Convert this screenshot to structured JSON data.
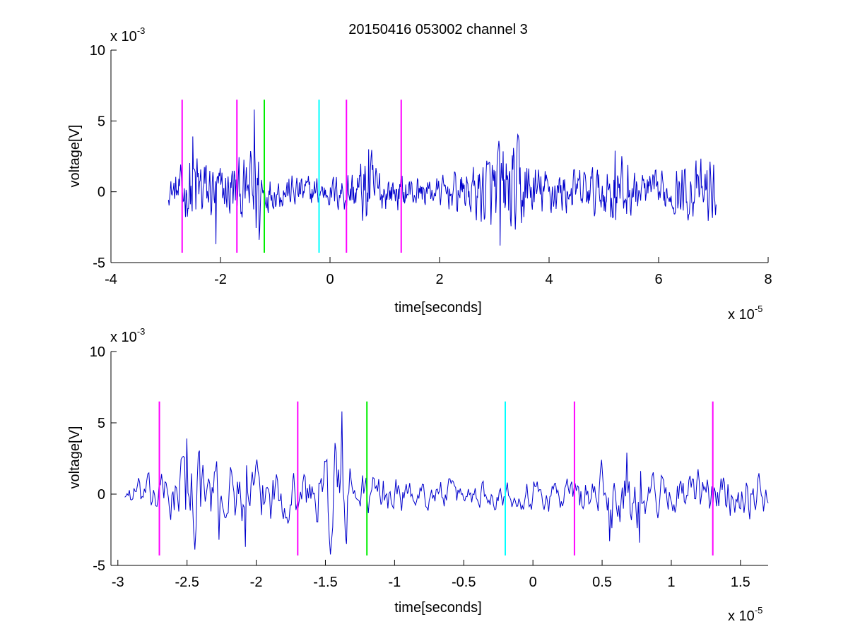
{
  "figure": {
    "title": "20150416 053002 channel 3"
  },
  "colors": {
    "trace": "#0000cc",
    "magenta": "#ff00ff",
    "green": "#00ee00",
    "cyan": "#00ffff",
    "axis": "#000000"
  },
  "chart_data": [
    {
      "type": "line",
      "title": "20150416 053002 channel 3",
      "xlabel": "time[seconds]",
      "ylabel": "voltage[V]",
      "x_scale_label": "x 10",
      "x_scale_exponent": "-5",
      "y_scale_label": "x 10",
      "y_scale_exponent": "-3",
      "xlim": [
        -4,
        8
      ],
      "ylim": [
        -5,
        10
      ],
      "xticks": [
        -4,
        -2,
        0,
        2,
        4,
        6,
        8
      ],
      "xtick_labels": [
        "-4",
        "-2",
        "0",
        "2",
        "4",
        "6",
        "8"
      ],
      "yticks": [
        -5,
        0,
        5,
        10
      ],
      "ytick_labels": [
        "-5",
        "0",
        "5",
        "10"
      ],
      "grid": false,
      "series": [
        {
          "x_range": [
            -2.95,
            7.05
          ],
          "envelope": [
            [
              -2.95,
              0.8
            ],
            [
              -2.6,
              2.2
            ],
            [
              -2.5,
              3.8
            ],
            [
              -2.2,
              2.2
            ],
            [
              -1.9,
              1.8
            ],
            [
              -1.8,
              2.6
            ],
            [
              -1.5,
              1.8
            ],
            [
              -1.4,
              5.8
            ],
            [
              -1.2,
              1.6
            ],
            [
              -1.0,
              1.2
            ],
            [
              -0.4,
              1.2
            ],
            [
              0.0,
              1.0
            ],
            [
              0.5,
              2.0
            ],
            [
              0.7,
              3.0
            ],
            [
              1.0,
              1.4
            ],
            [
              1.5,
              1.2
            ],
            [
              2.0,
              1.0
            ],
            [
              2.3,
              1.4
            ],
            [
              2.7,
              2.0
            ],
            [
              3.1,
              3.6
            ],
            [
              3.45,
              3.5
            ],
            [
              3.7,
              2.0
            ],
            [
              4.3,
              1.5
            ],
            [
              5.0,
              1.8
            ],
            [
              5.2,
              2.8
            ],
            [
              5.6,
              1.6
            ],
            [
              6.0,
              1.3
            ],
            [
              6.6,
              2.0
            ],
            [
              7.05,
              2.2
            ]
          ],
          "spikes": [
            [
              -1.38,
              5.8
            ],
            [
              -1.3,
              -3.4
            ],
            [
              -2.08,
              -3.7
            ],
            [
              -2.5,
              3.9
            ],
            [
              3.1,
              -3.8
            ],
            [
              3.45,
              3.6
            ],
            [
              5.2,
              2.9
            ],
            [
              0.7,
              3.0
            ]
          ]
        }
      ],
      "markers": [
        {
          "x": -2.7,
          "color": "magenta",
          "y_range": [
            -4.3,
            6.5
          ]
        },
        {
          "x": -1.7,
          "color": "magenta",
          "y_range": [
            -4.3,
            6.5
          ]
        },
        {
          "x": -1.2,
          "color": "green",
          "y_range": [
            -4.3,
            6.5
          ]
        },
        {
          "x": -0.2,
          "color": "cyan",
          "y_range": [
            -4.3,
            6.5
          ]
        },
        {
          "x": 0.3,
          "color": "magenta",
          "y_range": [
            -4.3,
            6.5
          ]
        },
        {
          "x": 1.3,
          "color": "magenta",
          "y_range": [
            -4.3,
            6.5
          ]
        }
      ]
    },
    {
      "type": "line",
      "title": "",
      "xlabel": "time[seconds]",
      "ylabel": "voltage[V]",
      "x_scale_label": "x 10",
      "x_scale_exponent": "-5",
      "y_scale_label": "x 10",
      "y_scale_exponent": "-3",
      "xlim": [
        -3.05,
        1.7
      ],
      "ylim": [
        -5,
        10
      ],
      "xticks": [
        -3,
        -2.5,
        -2,
        -1.5,
        -1,
        -0.5,
        0,
        0.5,
        1,
        1.5
      ],
      "xtick_labels": [
        "-3",
        "-2.5",
        "-2",
        "-1.5",
        "-1",
        "-0.5",
        "0",
        "0.5",
        "1",
        "1.5"
      ],
      "yticks": [
        -5,
        0,
        5,
        10
      ],
      "ytick_labels": [
        "-5",
        "0",
        "5",
        "10"
      ],
      "grid": false,
      "series": [
        {
          "x_range": [
            -2.95,
            1.7
          ],
          "envelope": [
            [
              -2.95,
              0.8
            ],
            [
              -2.8,
              1.2
            ],
            [
              -2.6,
              2.0
            ],
            [
              -2.5,
              3.8
            ],
            [
              -2.3,
              2.2
            ],
            [
              -2.1,
              2.0
            ],
            [
              -1.9,
              2.2
            ],
            [
              -1.8,
              2.0
            ],
            [
              -1.7,
              1.6
            ],
            [
              -1.55,
              2.2
            ],
            [
              -1.4,
              5.8
            ],
            [
              -1.3,
              1.6
            ],
            [
              -1.1,
              1.6
            ],
            [
              -0.9,
              1.0
            ],
            [
              -0.5,
              1.0
            ],
            [
              -0.2,
              0.9
            ],
            [
              0.0,
              1.2
            ],
            [
              0.2,
              1.4
            ],
            [
              0.3,
              1.2
            ],
            [
              0.45,
              2.0
            ],
            [
              0.55,
              2.2
            ],
            [
              0.68,
              2.9
            ],
            [
              0.8,
              1.8
            ],
            [
              1.0,
              1.4
            ],
            [
              1.2,
              1.6
            ],
            [
              1.35,
              1.6
            ],
            [
              1.5,
              1.6
            ],
            [
              1.7,
              1.4
            ]
          ],
          "spikes": [
            [
              -1.38,
              5.8
            ],
            [
              -1.35,
              -3.5
            ],
            [
              -2.5,
              3.9
            ],
            [
              -2.08,
              -3.7
            ],
            [
              -2.27,
              -3.2
            ],
            [
              0.68,
              2.9
            ],
            [
              0.77,
              -3.4
            ],
            [
              0.55,
              -3.3
            ]
          ]
        }
      ],
      "markers": [
        {
          "x": -2.7,
          "color": "magenta",
          "y_range": [
            -4.3,
            6.5
          ]
        },
        {
          "x": -1.7,
          "color": "magenta",
          "y_range": [
            -4.3,
            6.5
          ]
        },
        {
          "x": -1.2,
          "color": "green",
          "y_range": [
            -4.3,
            6.5
          ]
        },
        {
          "x": -0.2,
          "color": "cyan",
          "y_range": [
            -4.3,
            6.5
          ]
        },
        {
          "x": 0.3,
          "color": "magenta",
          "y_range": [
            -4.3,
            6.5
          ]
        },
        {
          "x": 1.3,
          "color": "magenta",
          "y_range": [
            -4.3,
            6.5
          ]
        }
      ]
    }
  ]
}
